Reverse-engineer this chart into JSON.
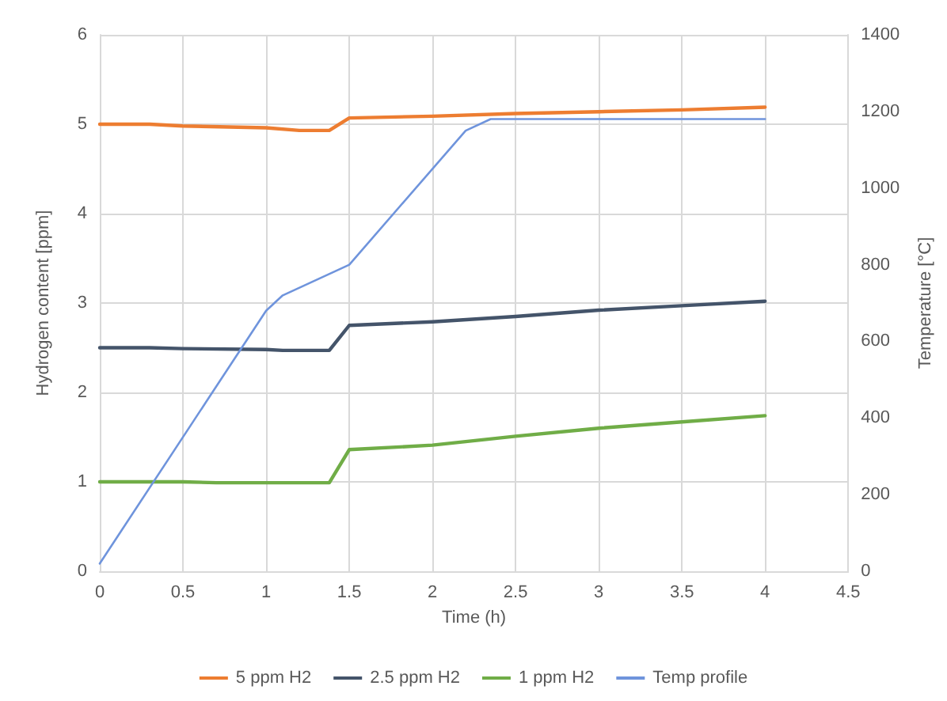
{
  "chart_data": {
    "type": "line",
    "xlabel": "Time (h)",
    "ylabel": "Hydrogen content [ppm]",
    "y2label": "Temperature [°C]",
    "xlim": [
      0,
      4.5
    ],
    "xticks": [
      0,
      0.5,
      1,
      1.5,
      2,
      2.5,
      3,
      3.5,
      4,
      4.5
    ],
    "ylim": [
      0,
      6
    ],
    "yticks": [
      0,
      1,
      2,
      3,
      4,
      5,
      6
    ],
    "y2lim": [
      0,
      1400
    ],
    "y2ticks": [
      0,
      200,
      400,
      600,
      800,
      1000,
      1200,
      1400
    ],
    "grid": true,
    "legend": "bottom",
    "marker": "none",
    "line_style": "solid",
    "series": [
      {
        "name": "5 ppm H2",
        "color": "#ed7d31",
        "x": [
          0,
          0.3,
          0.5,
          1,
          1.2,
          1.38,
          1.5,
          2,
          2.5,
          3,
          3.5,
          4
        ],
        "values": [
          5.0,
          5.0,
          4.98,
          4.96,
          4.93,
          4.93,
          5.07,
          5.09,
          5.12,
          5.14,
          5.16,
          5.19
        ]
      },
      {
        "name": "2.5 ppm H2",
        "color": "#44546a",
        "x": [
          0,
          0.3,
          0.5,
          1,
          1.1,
          1.38,
          1.5,
          2,
          2.5,
          3,
          3.5,
          4
        ],
        "values": [
          2.5,
          2.5,
          2.49,
          2.48,
          2.47,
          2.47,
          2.75,
          2.79,
          2.85,
          2.92,
          2.97,
          3.02
        ]
      },
      {
        "name": "1 ppm H2",
        "color": "#70ad47",
        "x": [
          0,
          0.5,
          0.7,
          1,
          1.38,
          1.5,
          2,
          2.5,
          3,
          3.5,
          4
        ],
        "values": [
          1.0,
          1.0,
          0.99,
          0.99,
          0.99,
          1.36,
          1.41,
          1.51,
          1.6,
          1.67,
          1.74
        ]
      },
      {
        "name": "Temp profile",
        "color": "#6f94dc",
        "axis": "y2",
        "x": [
          0,
          1,
          1.1,
          1.5,
          2.2,
          2.35,
          4
        ],
        "values": [
          20,
          680,
          720,
          800,
          1150,
          1180,
          1180
        ]
      }
    ]
  }
}
